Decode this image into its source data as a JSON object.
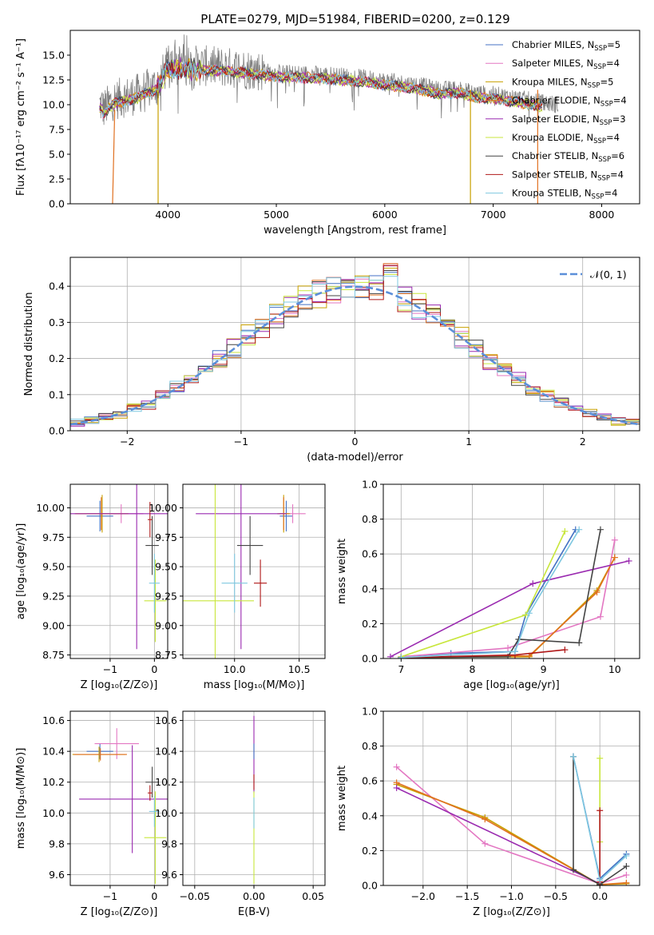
{
  "figure": {
    "title": "PLATE=0279, MJD=51984, FIBERID=0200, z=0.129"
  },
  "colors": {
    "Chabrier MILES": "#4472c4",
    "Salpeter MILES": "#e377c2",
    "Kroupa MILES": "#c8a000",
    "Chabrier ELODIE": "#e07020",
    "Salpeter ELODIE": "#9a2ab0",
    "Kroupa ELODIE": "#c8e63c",
    "Chabrier STELIB": "#444444",
    "Salpeter STELIB": "#b01818",
    "Kroupa STELIB": "#7fc8e0",
    "normal": "#5b8fd9"
  },
  "chart_data": [
    {
      "id": "spectrum",
      "type": "line",
      "title": "PLATE=0279, MJD=51984, FIBERID=0200, z=0.129",
      "xlabel": "wavelength [Angstrom, rest frame]",
      "ylabel": "Flux [fλ10⁻¹⁷ erg cm⁻² s⁻¹ A⁻¹]",
      "xlim": [
        3100,
        8350
      ],
      "ylim": [
        0,
        17.5
      ],
      "xticks": [
        4000,
        5000,
        6000,
        7000,
        8000
      ],
      "yticks": [
        0.0,
        2.5,
        5.0,
        7.5,
        10.0,
        12.5,
        15.0
      ],
      "legend_loc": "upper right",
      "series": [
        {
          "name": "Chabrier MILES, N_SSP=5"
        },
        {
          "name": "Salpeter MILES, N_SSP=4"
        },
        {
          "name": "Kroupa MILES, N_SSP=5"
        },
        {
          "name": "Chabrier ELODIE, N_SSP=4"
        },
        {
          "name": "Salpeter ELODIE, N_SSP=3"
        },
        {
          "name": "Kroupa ELODIE, N_SSP=4"
        },
        {
          "name": "Chabrier STELIB, N_SSP=6"
        },
        {
          "name": "Salpeter STELIB, N_SSP=4"
        },
        {
          "name": "Kroupa STELIB, N_SSP=4"
        }
      ],
      "data_envelope": {
        "x": [
          3400,
          3500,
          3700,
          3900,
          4000,
          4200,
          4500,
          4800,
          5000,
          5300,
          5500,
          5800,
          6000,
          6300,
          6500,
          6700,
          6800,
          7000,
          7200,
          7400,
          7600
        ],
        "y": [
          9.5,
          10.5,
          11.0,
          12.0,
          14.0,
          14.0,
          13.8,
          13.5,
          13.2,
          13.1,
          13.0,
          12.7,
          12.4,
          12.0,
          11.5,
          11.6,
          11.2,
          11.0,
          10.7,
          10.3,
          10.0
        ]
      }
    },
    {
      "id": "residuals",
      "type": "step",
      "xlabel": "(data-model)/error",
      "ylabel": "Normed distribution",
      "xlim": [
        -2.5,
        2.5
      ],
      "ylim": [
        0,
        0.48
      ],
      "xticks": [
        -2,
        -1,
        0,
        1,
        2
      ],
      "yticks": [
        0.0,
        0.1,
        0.2,
        0.3,
        0.4
      ],
      "legend": [
        "𝒩(0, 1)"
      ],
      "bin_width": 0.125,
      "peak_approx": 0.46,
      "gaussian": {
        "mu": 0,
        "sigma": 1
      }
    },
    {
      "id": "age_vs_Z",
      "type": "errorbar",
      "xlabel": "Z [log₁₀(Z/Z⊙)]",
      "ylabel": "age  [log₁₀(age/yr)]",
      "xlim": [
        -1.9,
        0.3
      ],
      "ylim": [
        8.72,
        10.2
      ],
      "xticks": [
        -1,
        0
      ],
      "yticks": [
        8.75,
        9.0,
        9.25,
        9.5,
        9.75,
        10.0
      ],
      "points": [
        {
          "name": "Chabrier MILES",
          "x": -1.23,
          "y": 9.93,
          "xerr": 0.3,
          "yerr": 0.13
        },
        {
          "name": "Salpeter MILES",
          "x": -0.75,
          "y": 9.95,
          "xerr": 0.5,
          "yerr": 0.08
        },
        {
          "name": "Kroupa MILES",
          "x": -1.18,
          "y": 9.95,
          "xerr": 0.6,
          "yerr": 0.16
        },
        {
          "name": "Chabrier ELODIE",
          "x": -1.2,
          "y": 9.95,
          "xerr": 0.6,
          "yerr": 0.14
        },
        {
          "name": "Salpeter ELODIE",
          "x": -0.4,
          "y": 9.95,
          "xerr": 1.5,
          "yerr": 1.15
        },
        {
          "name": "Kroupa ELODIE",
          "x": 0.02,
          "y": 9.21,
          "xerr": 0.25,
          "yerr": 0.35
        },
        {
          "name": "Chabrier STELIB",
          "x": -0.05,
          "y": 9.68,
          "xerr": 0.15,
          "yerr": 0.25
        },
        {
          "name": "Salpeter STELIB",
          "x": -0.1,
          "y": 9.9,
          "xerr": 0.05,
          "yerr": 0.15
        },
        {
          "name": "Kroupa STELIB",
          "x": 0.0,
          "y": 9.36,
          "xerr": 0.12,
          "yerr": 0.25
        }
      ]
    },
    {
      "id": "age_vs_mass",
      "type": "errorbar",
      "xlabel": "mass [log₁₀(M/M⊙)]",
      "xlim": [
        9.6,
        10.7
      ],
      "ylim": [
        8.72,
        10.2
      ],
      "xticks": [
        10.0,
        10.5
      ],
      "yticks": [
        8.75,
        9.0,
        9.25,
        9.5,
        9.75,
        10.0
      ],
      "points": [
        {
          "name": "Chabrier MILES",
          "x": 10.4,
          "y": 9.93,
          "xerr": 0.05,
          "yerr": 0.13
        },
        {
          "name": "Salpeter MILES",
          "x": 10.45,
          "y": 9.95,
          "xerr": 0.1,
          "yerr": 0.08
        },
        {
          "name": "Kroupa MILES",
          "x": 10.38,
          "y": 9.95,
          "xerr": 0.05,
          "yerr": 0.16
        },
        {
          "name": "Chabrier ELODIE",
          "x": 10.38,
          "y": 9.95,
          "xerr": 0.04,
          "yerr": 0.14
        },
        {
          "name": "Salpeter ELODIE",
          "x": 10.05,
          "y": 9.95,
          "xerr": 0.35,
          "yerr": 1.15
        },
        {
          "name": "Kroupa ELODIE",
          "x": 9.85,
          "y": 9.21,
          "xerr": 0.3,
          "yerr": 1.0
        },
        {
          "name": "Chabrier STELIB",
          "x": 10.12,
          "y": 9.68,
          "xerr": 0.1,
          "yerr": 0.25
        },
        {
          "name": "Salpeter STELIB",
          "x": 10.2,
          "y": 9.36,
          "xerr": 0.05,
          "yerr": 0.2
        },
        {
          "name": "Kroupa STELIB",
          "x": 10.0,
          "y": 9.36,
          "xerr": 0.1,
          "yerr": 0.25
        }
      ]
    },
    {
      "id": "weight_vs_age",
      "type": "line",
      "xlabel": "age  [log₁₀(age/yr)]",
      "ylabel": "mass weight",
      "xlim": [
        6.75,
        10.35
      ],
      "ylim": [
        0,
        1.0
      ],
      "xticks": [
        7,
        8,
        9,
        10
      ],
      "yticks": [
        0.0,
        0.2,
        0.4,
        0.6,
        0.8,
        1.0
      ],
      "series": [
        {
          "name": "Chabrier MILES",
          "x": [
            7.0,
            7.7,
            8.6,
            8.75,
            9.45
          ],
          "y": [
            0.01,
            0.03,
            0.04,
            0.25,
            0.74
          ]
        },
        {
          "name": "Salpeter MILES",
          "x": [
            7.0,
            8.5,
            9.8,
            10.0
          ],
          "y": [
            0.01,
            0.06,
            0.24,
            0.68
          ]
        },
        {
          "name": "Kroupa MILES",
          "x": [
            7.0,
            8.8,
            9.75,
            10.0
          ],
          "y": [
            0.005,
            0.01,
            0.39,
            0.58
          ]
        },
        {
          "name": "Chabrier ELODIE",
          "x": [
            7.0,
            8.8,
            9.75,
            10.0
          ],
          "y": [
            0.005,
            0.015,
            0.38,
            0.58
          ]
        },
        {
          "name": "Salpeter ELODIE",
          "x": [
            6.85,
            8.85,
            10.2
          ],
          "y": [
            0.01,
            0.43,
            0.56
          ]
        },
        {
          "name": "Kroupa ELODIE",
          "x": [
            7.0,
            8.75,
            9.3
          ],
          "y": [
            0.01,
            0.25,
            0.73
          ]
        },
        {
          "name": "Chabrier STELIB",
          "x": [
            7.0,
            8.5,
            8.65,
            9.5,
            9.8
          ],
          "y": [
            0.005,
            0.01,
            0.11,
            0.09,
            0.74
          ]
        },
        {
          "name": "Salpeter STELIB",
          "x": [
            7.0,
            8.6,
            9.3
          ],
          "y": [
            0.005,
            0.02,
            0.05
          ]
        },
        {
          "name": "Kroupa STELIB",
          "x": [
            7.0,
            8.6,
            8.8,
            9.5
          ],
          "y": [
            0.005,
            0.04,
            0.26,
            0.74
          ]
        }
      ]
    },
    {
      "id": "mass_vs_Z",
      "type": "errorbar",
      "xlabel": "Z [log₁₀(Z/Z⊙)]",
      "ylabel": "mass [log₁₀(M/M⊙)]",
      "xlim": [
        -1.9,
        0.3
      ],
      "ylim": [
        9.53,
        10.66
      ],
      "xticks": [
        -1,
        0
      ],
      "yticks": [
        9.6,
        9.8,
        10.0,
        10.2,
        10.4,
        10.6
      ],
      "points": [
        {
          "name": "Chabrier MILES",
          "x": -1.23,
          "y": 10.4,
          "xerr": 0.3,
          "yerr": 0.05
        },
        {
          "name": "Salpeter MILES",
          "x": -0.85,
          "y": 10.45,
          "xerr": 0.5,
          "yerr": 0.1
        },
        {
          "name": "Kroupa MILES",
          "x": -1.25,
          "y": 10.38,
          "xerr": 0.6,
          "yerr": 0.05
        },
        {
          "name": "Chabrier ELODIE",
          "x": -1.22,
          "y": 10.38,
          "xerr": 0.6,
          "yerr": 0.04
        },
        {
          "name": "Salpeter ELODIE",
          "x": -0.5,
          "y": 10.09,
          "xerr": 1.2,
          "yerr": 0.35
        },
        {
          "name": "Kroupa ELODIE",
          "x": 0.02,
          "y": 9.84,
          "xerr": 0.25,
          "yerr": 0.3
        },
        {
          "name": "Chabrier STELIB",
          "x": -0.05,
          "y": 10.2,
          "xerr": 0.15,
          "yerr": 0.1
        },
        {
          "name": "Salpeter STELIB",
          "x": -0.1,
          "y": 10.13,
          "xerr": 0.05,
          "yerr": 0.05
        },
        {
          "name": "Kroupa STELIB",
          "x": 0.0,
          "y": 10.01,
          "xerr": 0.12,
          "yerr": 0.1
        }
      ]
    },
    {
      "id": "mass_vs_ebv",
      "type": "errorbar",
      "xlabel": "E(B-V)",
      "xlim": [
        -0.06,
        0.06
      ],
      "ylim": [
        9.53,
        10.66
      ],
      "xticks": [
        -0.05,
        0.0,
        0.05
      ],
      "xtick_labels": [
        "−0.05",
        "0.00",
        "0.05"
      ],
      "yticks": [
        9.6,
        9.8,
        10.0,
        10.2,
        10.4,
        10.6
      ],
      "points": [
        {
          "name": "Salpeter ELODIE",
          "x": 0.0,
          "y": 10.38,
          "yerr": 0.25
        },
        {
          "name": "Kroupa ELODIE",
          "x": 0.0,
          "y": 9.84,
          "yerr": 0.3
        },
        {
          "name": "Salpeter STELIB",
          "x": 0.0,
          "y": 10.2,
          "yerr": 0.05
        },
        {
          "name": "Kroupa STELIB",
          "x": 0.0,
          "y": 10.0,
          "yerr": 0.1
        },
        {
          "name": "Chabrier MILES",
          "x": 0.0,
          "y": 10.4,
          "yerr": 0.05
        }
      ]
    },
    {
      "id": "weight_vs_Z",
      "type": "line",
      "xlabel": "Z [log₁₀(Z/Z⊙)]",
      "ylabel": "mass weight",
      "xlim": [
        -2.45,
        0.45
      ],
      "ylim": [
        0,
        1.0
      ],
      "xticks": [
        -2.0,
        -1.5,
        -1.0,
        -0.5,
        0.0
      ],
      "xtick_labels": [
        "−2.0",
        "−1.5",
        "−1.0",
        "−0.5",
        "0.0"
      ],
      "yticks": [
        0.0,
        0.2,
        0.4,
        0.6,
        0.8,
        1.0
      ],
      "series": [
        {
          "name": "Chabrier MILES",
          "x": [
            -0.3,
            0.0,
            0.3
          ],
          "y": [
            0.74,
            0.04,
            0.18
          ]
        },
        {
          "name": "Salpeter MILES",
          "x": [
            -2.3,
            -1.3,
            0.0,
            0.3
          ],
          "y": [
            0.68,
            0.24,
            0.01,
            0.06
          ]
        },
        {
          "name": "Kroupa MILES",
          "x": [
            -2.3,
            -1.3,
            0.0,
            0.3
          ],
          "y": [
            0.58,
            0.39,
            0.005,
            0.01
          ]
        },
        {
          "name": "Chabrier ELODIE",
          "x": [
            -2.3,
            -1.3,
            0.0,
            0.3
          ],
          "y": [
            0.59,
            0.38,
            0.005,
            0.015
          ]
        },
        {
          "name": "Salpeter ELODIE",
          "x": [
            -2.3,
            0.0
          ],
          "y": [
            0.56,
            0.01
          ]
        },
        {
          "name": "Kroupa ELODIE",
          "x": [
            0.0,
            0.0,
            0.0
          ],
          "y": [
            0.73,
            0.25,
            0.01
          ]
        },
        {
          "name": "Chabrier STELIB",
          "x": [
            -0.3,
            -0.3,
            0.0,
            0.3
          ],
          "y": [
            0.74,
            0.09,
            0.005,
            0.11
          ]
        },
        {
          "name": "Salpeter STELIB",
          "x": [
            0.0,
            0.0
          ],
          "y": [
            0.43,
            0.02
          ]
        },
        {
          "name": "Kroupa STELIB",
          "x": [
            -0.3,
            0.0,
            0.3
          ],
          "y": [
            0.74,
            0.03,
            0.17
          ]
        }
      ]
    }
  ]
}
